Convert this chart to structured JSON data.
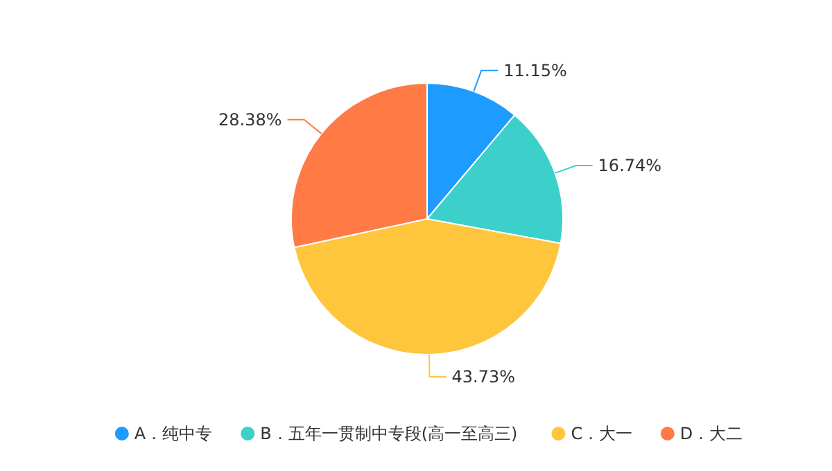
{
  "chart_data": {
    "type": "pie",
    "categories": [
      "A．纯中专",
      "B．五年一贯制中专段(高一至高三)",
      "C．大一",
      "D．大二"
    ],
    "values": [
      11.15,
      16.74,
      43.73,
      28.38
    ],
    "colors": [
      "#1e9bff",
      "#3bd0c9",
      "#ffc53d",
      "#ff7a45"
    ],
    "value_labels": [
      "11.15%",
      "16.74%",
      "43.73%",
      "28.38%"
    ],
    "legend": "bottom"
  }
}
